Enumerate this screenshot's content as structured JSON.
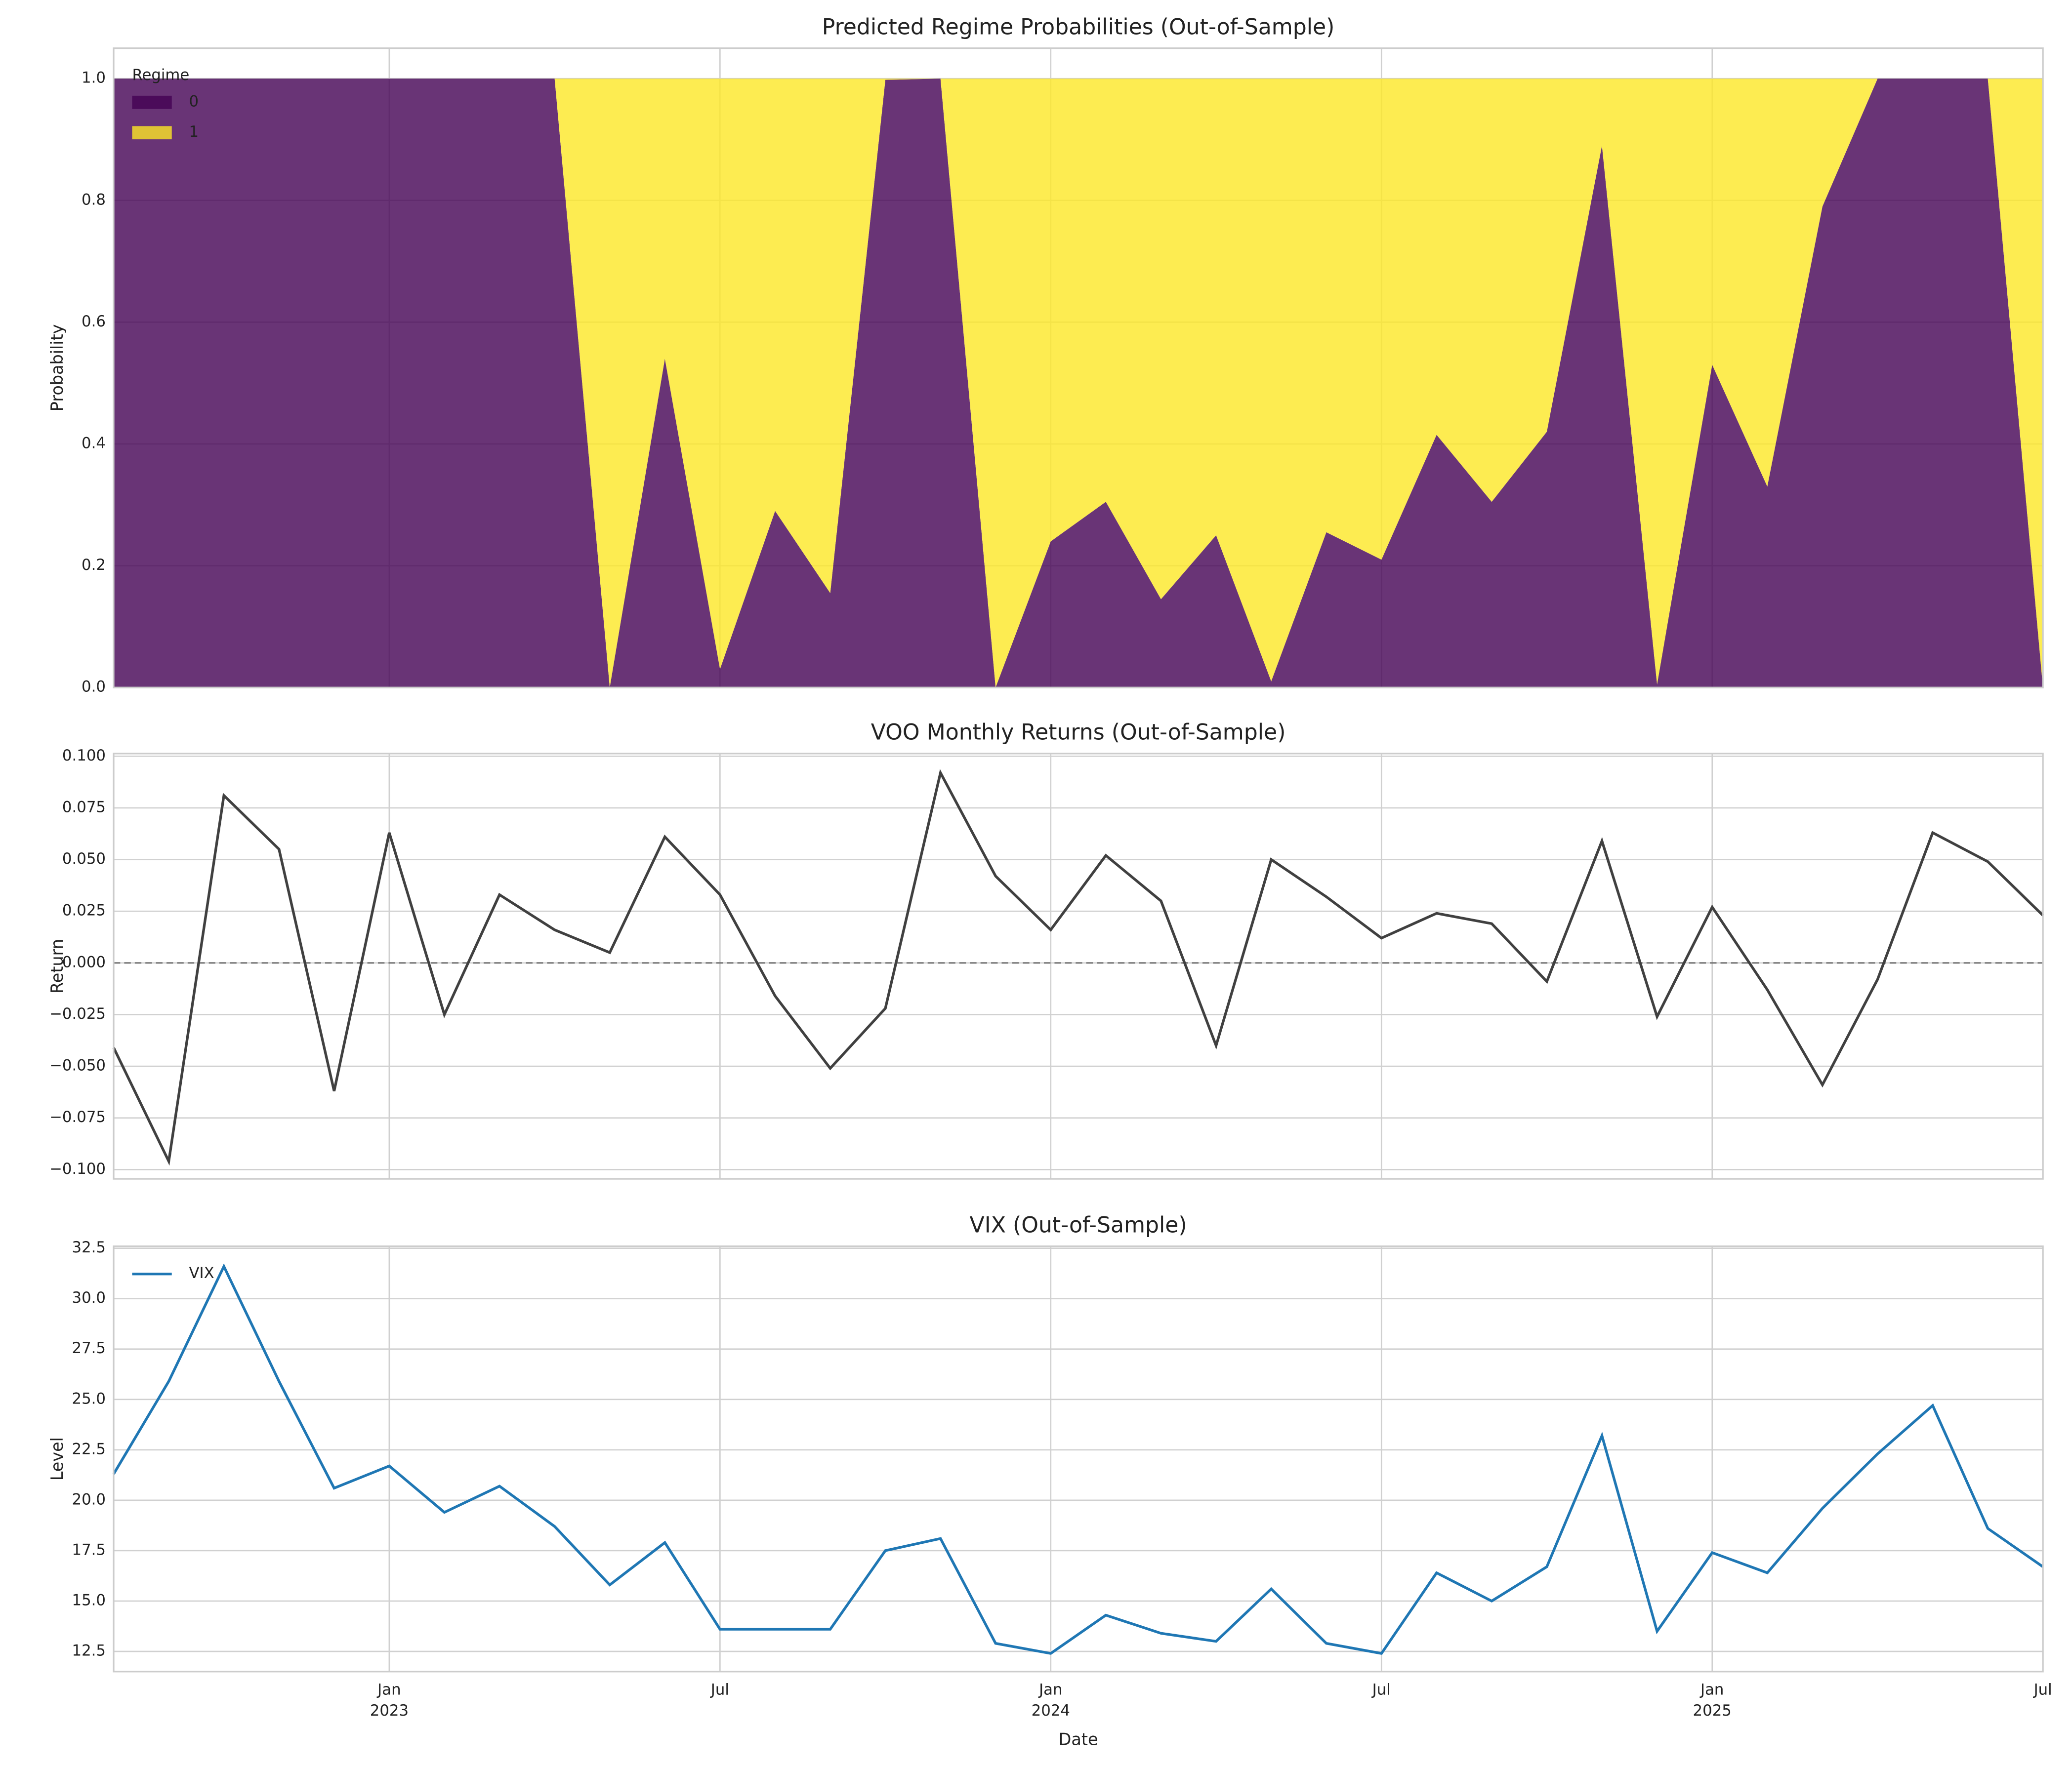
{
  "chart_data": [
    {
      "type": "area",
      "stacked": true,
      "title": "Predicted Regime Probabilities (Out-of-Sample)",
      "ylabel": "Probability",
      "legend_title": "Regime",
      "legend": "upper left",
      "grid": true,
      "x": [
        "2022-08",
        "2022-09",
        "2022-10",
        "2022-11",
        "2022-12",
        "2023-01",
        "2023-02",
        "2023-03",
        "2023-04",
        "2023-05",
        "2023-06",
        "2023-07",
        "2023-08",
        "2023-09",
        "2023-10",
        "2023-11",
        "2023-12",
        "2024-01",
        "2024-02",
        "2024-03",
        "2024-04",
        "2024-05",
        "2024-06",
        "2024-07",
        "2024-08",
        "2024-09",
        "2024-10",
        "2024-11",
        "2024-12",
        "2025-01",
        "2025-02",
        "2025-03",
        "2025-04",
        "2025-05",
        "2025-06",
        "2025-07"
      ],
      "series": [
        {
          "name": "0",
          "color": "#440154",
          "values": [
            1,
            1,
            1,
            1,
            1,
            1,
            1,
            1,
            1,
            0,
            0.54,
            0.03,
            0.29,
            0.155,
            0.998,
            1,
            0,
            0.24,
            0.305,
            0.145,
            0.25,
            0.01,
            0.255,
            0.21,
            0.415,
            0.305,
            0.42,
            0.89,
            0.005,
            0.53,
            0.33,
            0.79,
            1,
            1,
            1,
            0
          ]
        },
        {
          "name": "1",
          "color": "#fde725",
          "values": [
            0,
            0,
            0,
            0,
            0,
            0,
            0,
            0,
            0,
            1,
            0.46,
            0.97,
            0.71,
            0.845,
            0.002,
            0,
            1,
            0.76,
            0.695,
            0.855,
            0.75,
            0.99,
            0.745,
            0.79,
            0.585,
            0.695,
            0.58,
            0.11,
            0.995,
            0.47,
            0.67,
            0.21,
            0,
            0,
            0,
            1
          ]
        }
      ],
      "xlim": [
        "2022-08",
        "2025-07"
      ],
      "ylim": [
        0,
        1.05
      ],
      "yticks": [
        {
          "value": 0,
          "label": "0.0"
        },
        {
          "value": 0.2,
          "label": "0.2"
        },
        {
          "value": 0.4,
          "label": "0.4"
        },
        {
          "value": 0.6,
          "label": "0.6"
        },
        {
          "value": 0.8,
          "label": "0.8"
        },
        {
          "value": 1,
          "label": "1.0"
        }
      ]
    },
    {
      "type": "line",
      "title": "VOO Monthly Returns (Out-of-Sample)",
      "ylabel": "Return",
      "grid": true,
      "hline": 0,
      "x": [
        "2022-08",
        "2022-09",
        "2022-10",
        "2022-11",
        "2022-12",
        "2023-01",
        "2023-02",
        "2023-03",
        "2023-04",
        "2023-05",
        "2023-06",
        "2023-07",
        "2023-08",
        "2023-09",
        "2023-10",
        "2023-11",
        "2023-12",
        "2024-01",
        "2024-02",
        "2024-03",
        "2024-04",
        "2024-05",
        "2024-06",
        "2024-07",
        "2024-08",
        "2024-09",
        "2024-10",
        "2024-11",
        "2024-12",
        "2025-01",
        "2025-02",
        "2025-03",
        "2025-04",
        "2025-05",
        "2025-06",
        "2025-07"
      ],
      "series": [
        {
          "name": "Return",
          "color": "#404040",
          "values": [
            -0.041,
            -0.096,
            0.081,
            0.055,
            -0.062,
            0.063,
            -0.025,
            0.033,
            0.016,
            0.005,
            0.061,
            0.033,
            -0.016,
            -0.051,
            -0.022,
            0.092,
            0.042,
            0.016,
            0.052,
            0.03,
            -0.04,
            0.05,
            0.032,
            0.012,
            0.024,
            0.019,
            -0.009,
            0.059,
            -0.026,
            0.027,
            -0.013,
            -0.059,
            -0.008,
            0.063,
            0.049,
            0.023
          ]
        }
      ],
      "xlim": [
        "2022-08",
        "2025-07"
      ],
      "ylim": [
        -0.1045,
        0.1013
      ],
      "yticks": [
        {
          "value": -0.1,
          "label": "−0.100"
        },
        {
          "value": -0.075,
          "label": "−0.075"
        },
        {
          "value": -0.05,
          "label": "−0.050"
        },
        {
          "value": -0.025,
          "label": "−0.025"
        },
        {
          "value": 0,
          "label": "0.000"
        },
        {
          "value": 0.025,
          "label": "0.025"
        },
        {
          "value": 0.05,
          "label": "0.050"
        },
        {
          "value": 0.075,
          "label": "0.075"
        },
        {
          "value": 0.1,
          "label": "0.100"
        }
      ]
    },
    {
      "type": "line",
      "title": "VIX (Out-of-Sample)",
      "ylabel": "Level",
      "xlabel": "Date",
      "grid": true,
      "legend": "upper left",
      "x": [
        "2022-08",
        "2022-09",
        "2022-10",
        "2022-11",
        "2022-12",
        "2023-01",
        "2023-02",
        "2023-03",
        "2023-04",
        "2023-05",
        "2023-06",
        "2023-07",
        "2023-08",
        "2023-09",
        "2023-10",
        "2023-11",
        "2023-12",
        "2024-01",
        "2024-02",
        "2024-03",
        "2024-04",
        "2024-05",
        "2024-06",
        "2024-07",
        "2024-08",
        "2024-09",
        "2024-10",
        "2024-11",
        "2024-12",
        "2025-01",
        "2025-02",
        "2025-03",
        "2025-04",
        "2025-05",
        "2025-06",
        "2025-07"
      ],
      "series": [
        {
          "name": "VIX",
          "color": "#1f77b4",
          "values": [
            21.3,
            25.9,
            31.6,
            25.9,
            20.6,
            21.7,
            19.4,
            20.7,
            18.7,
            15.8,
            17.9,
            13.6,
            13.6,
            13.6,
            17.5,
            18.1,
            12.9,
            12.4,
            14.3,
            13.4,
            13.0,
            15.6,
            12.9,
            12.4,
            16.4,
            15.0,
            16.7,
            23.2,
            13.5,
            17.4,
            16.4,
            19.6,
            22.3,
            24.7,
            18.6,
            16.7
          ]
        }
      ],
      "xlim": [
        "2022-08",
        "2025-07"
      ],
      "ylim": [
        11.5,
        32.6
      ],
      "yticks": [
        {
          "value": 12.5,
          "label": "12.5"
        },
        {
          "value": 15,
          "label": "15.0"
        },
        {
          "value": 17.5,
          "label": "17.5"
        },
        {
          "value": 20,
          "label": "20.0"
        },
        {
          "value": 22.5,
          "label": "22.5"
        },
        {
          "value": 25,
          "label": "25.0"
        },
        {
          "value": 27.5,
          "label": "27.5"
        },
        {
          "value": 30,
          "label": "30.0"
        },
        {
          "value": 32.5,
          "label": "32.5"
        }
      ],
      "xticks": [
        {
          "value": "2023-01",
          "label": "Jan\n2023"
        },
        {
          "value": "2023-07",
          "label": "Jul"
        },
        {
          "value": "2024-01",
          "label": "Jan\n2024"
        },
        {
          "value": "2024-07",
          "label": "Jul"
        },
        {
          "value": "2025-01",
          "label": "Jan\n2025"
        },
        {
          "value": "2025-07",
          "label": "Jul"
        }
      ]
    }
  ]
}
